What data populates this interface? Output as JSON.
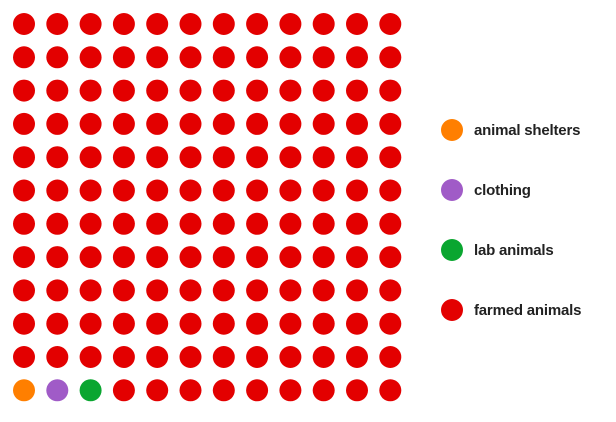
{
  "chart_data": {
    "type": "waffle",
    "total": 144,
    "grid": {
      "rows": 12,
      "columns": 12,
      "fill_order": "bottom-left, row by row"
    },
    "categories": [
      {
        "name": "animal shelters",
        "count": 1,
        "color": "#ff7f00"
      },
      {
        "name": "clothing",
        "count": 1,
        "color": "#a05bc7"
      },
      {
        "name": "lab animals",
        "count": 1,
        "color": "#0aa630"
      },
      {
        "name": "farmed animals",
        "count": 141,
        "color": "#e30000"
      }
    ],
    "legend": {
      "position": "right",
      "items": [
        {
          "label": "animal shelters",
          "color": "#ff7f00"
        },
        {
          "label": "clothing",
          "color": "#a05bc7"
        },
        {
          "label": "lab animals",
          "color": "#0aa630"
        },
        {
          "label": "farmed animals",
          "color": "#e30000"
        }
      ]
    }
  }
}
